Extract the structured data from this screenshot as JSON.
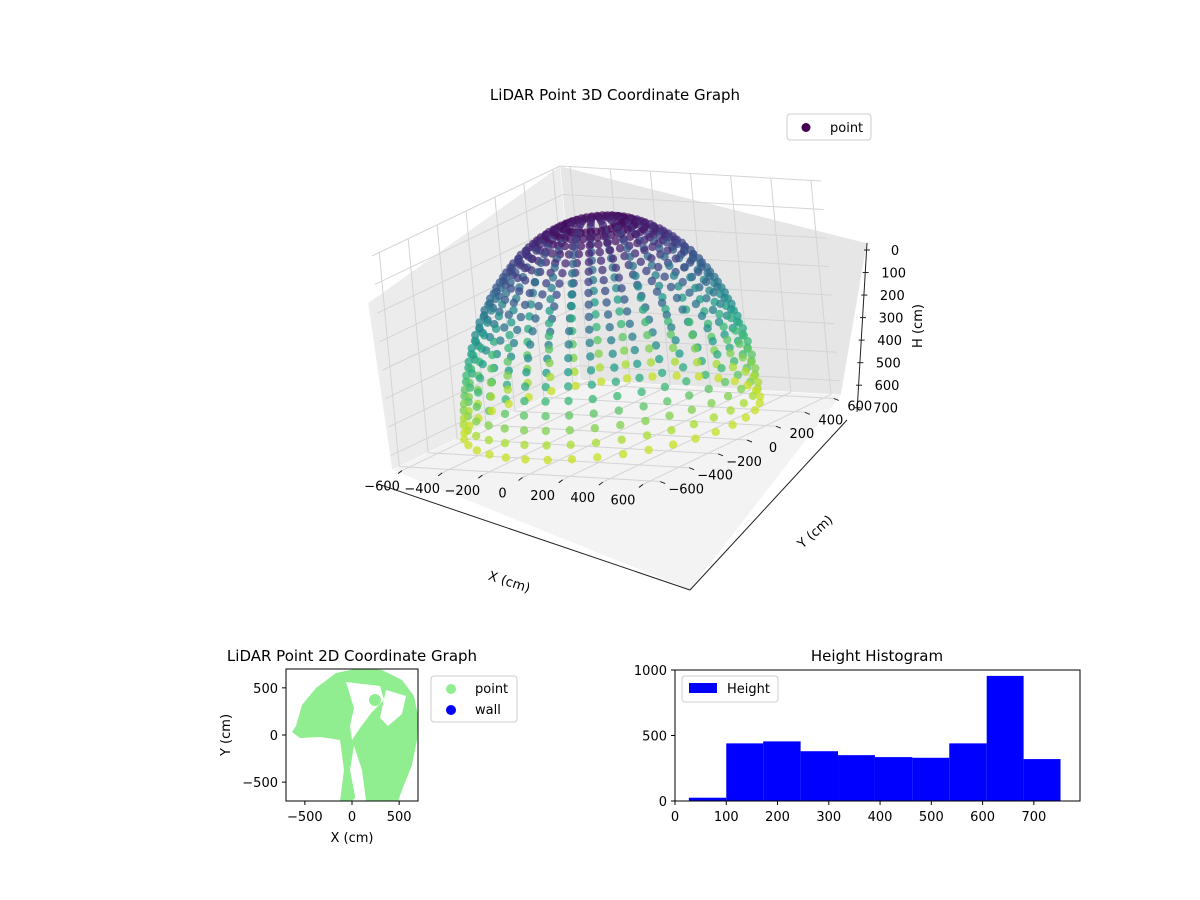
{
  "colors": {
    "viridis_dark": "#440154",
    "viridis_mid": "#21918c",
    "viridis_light": "#bddf26",
    "scatter2d_point": "#90ee90",
    "scatter2d_wall": "#0000ff",
    "histogram_bar": "#0000ff",
    "pane_fill": "#f2f2f2",
    "grid": "#d9d9d9"
  },
  "chart_data": [
    {
      "type": "scatter",
      "title": "LiDAR Point 3D Coordinate Graph",
      "xlabel": "X (cm)",
      "ylabel": "Y (cm)",
      "zlabel": "H (cm)",
      "xlim": [
        -650,
        650
      ],
      "ylim": [
        -650,
        650
      ],
      "zlim": [
        0,
        750
      ],
      "z_inverted": true,
      "x_ticks": [
        "−600",
        "−400",
        "−200",
        "0",
        "200",
        "400",
        "600"
      ],
      "y_ticks": [
        "−600",
        "−400",
        "−200",
        "0",
        "200",
        "400",
        "600"
      ],
      "z_ticks": [
        "0",
        "100",
        "200",
        "300",
        "400",
        "500",
        "600",
        "700"
      ],
      "colormap": "viridis",
      "legend": {
        "entries": [
          "point"
        ],
        "placement": "top-right"
      },
      "series": [
        {
          "name": "point",
          "shape": "hemispherical dome of scan rings",
          "x_range": [
            -600,
            600
          ],
          "y_range": [
            -650,
            650
          ],
          "h_range": [
            0,
            750
          ]
        }
      ]
    },
    {
      "type": "scatter",
      "title": "LiDAR Point 2D Coordinate Graph",
      "xlabel": "X (cm)",
      "ylabel": "Y (cm)",
      "xlim": [
        -700,
        700
      ],
      "ylim": [
        -700,
        700
      ],
      "x_ticks": [
        "−500",
        "0",
        "500"
      ],
      "y_ticks": [
        "−500",
        "0",
        "500"
      ],
      "legend": {
        "entries": [
          "point",
          "wall"
        ],
        "placement": "outside-right"
      },
      "series": [
        {
          "name": "point",
          "shape": "filled disc of radius ~650 with gaps"
        },
        {
          "name": "wall",
          "points": []
        }
      ]
    },
    {
      "type": "bar",
      "title": "Height Histogram",
      "x_ticks": [
        "0",
        "100",
        "200",
        "300",
        "400",
        "500",
        "600",
        "700"
      ],
      "y_ticks": [
        "0",
        "500",
        "1000"
      ],
      "xlim": [
        0,
        790
      ],
      "ylim": [
        0,
        1000
      ],
      "legend": {
        "entries": [
          "Height"
        ],
        "placement": "top-left"
      },
      "bins": [
        {
          "start": 27,
          "end": 100,
          "count": 25
        },
        {
          "start": 100,
          "end": 172,
          "count": 440
        },
        {
          "start": 172,
          "end": 245,
          "count": 455
        },
        {
          "start": 245,
          "end": 318,
          "count": 380
        },
        {
          "start": 318,
          "end": 390,
          "count": 350
        },
        {
          "start": 390,
          "end": 463,
          "count": 335
        },
        {
          "start": 463,
          "end": 535,
          "count": 330
        },
        {
          "start": 535,
          "end": 608,
          "count": 440
        },
        {
          "start": 608,
          "end": 680,
          "count": 955
        },
        {
          "start": 680,
          "end": 752,
          "count": 320
        }
      ]
    }
  ]
}
